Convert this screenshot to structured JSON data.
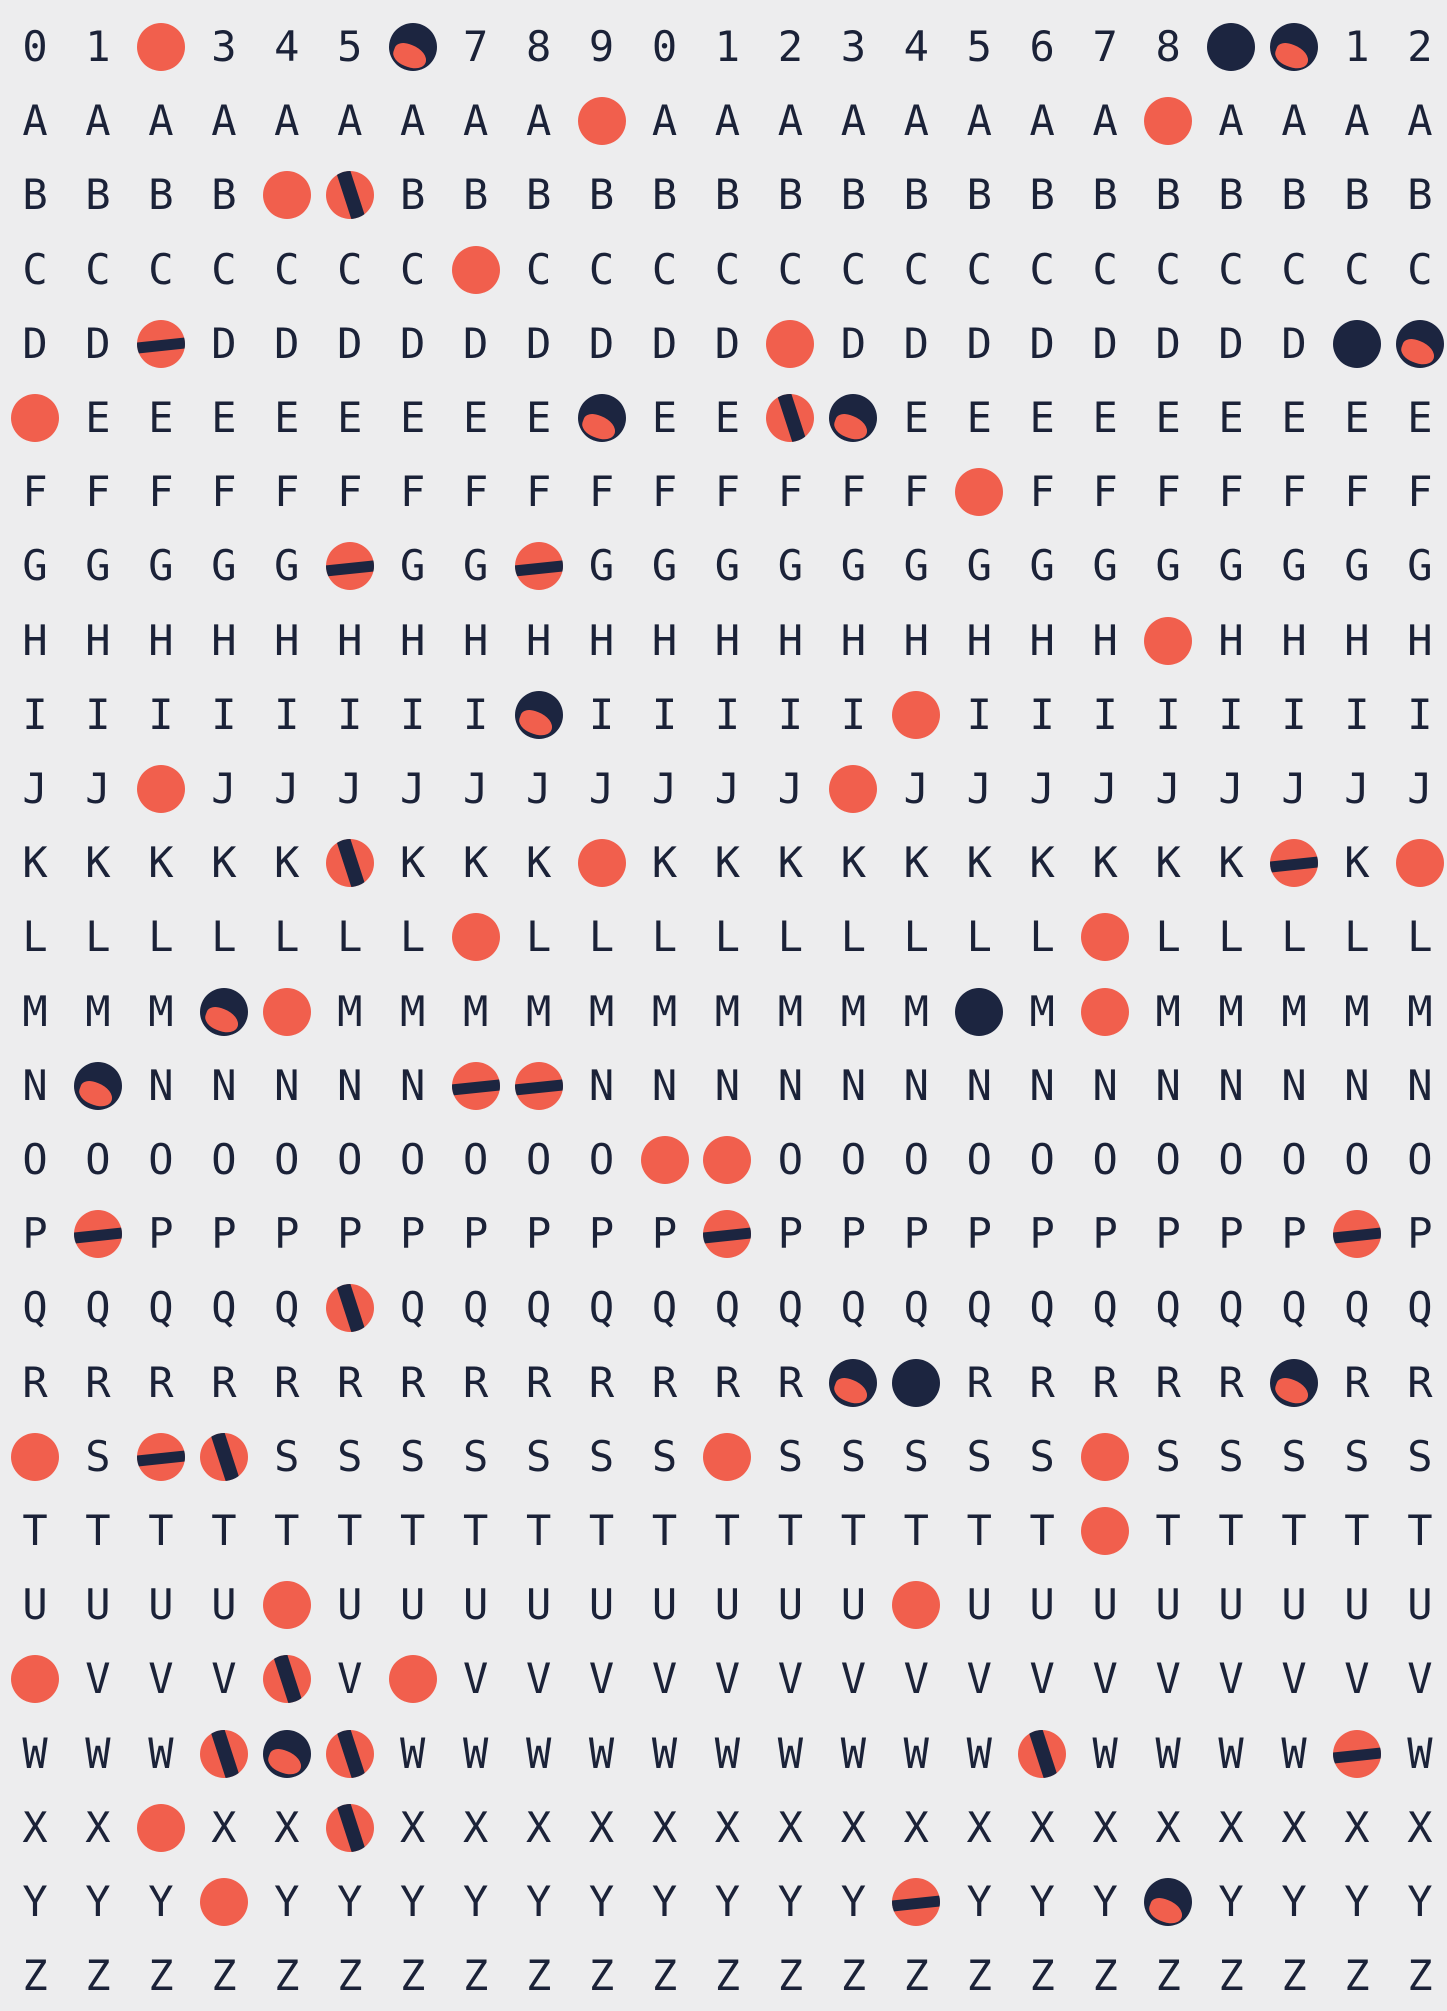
{
  "colors": {
    "background": "#ededee",
    "text": "#1b2238",
    "dot_red": "#f15f4d",
    "dot_navy": "#1c2540"
  },
  "columns": 23,
  "rows": [
    "0",
    "1",
    "2",
    "3",
    "4",
    "5",
    "6",
    "7",
    "8",
    "9",
    "0",
    "1",
    "2",
    "3",
    "4",
    "5",
    "6",
    "7",
    "8",
    "9",
    "0",
    "1",
    "2"
  ],
  "row_letters": [
    "A",
    "B",
    "C",
    "D",
    "E",
    "F",
    "G",
    "H",
    "I",
    "J",
    "K",
    "L",
    "M",
    "N",
    "O",
    "P",
    "Q",
    "R",
    "S",
    "T",
    "U",
    "V",
    "W",
    "X",
    "Y",
    "Z"
  ],
  "digits_row": [
    "0",
    "1",
    "2",
    "3",
    "4",
    "5",
    "6",
    "7",
    "8",
    "9",
    "0",
    "1",
    "2",
    "3",
    "4",
    "5",
    "6",
    "7",
    "8",
    "9",
    "0",
    "1",
    "2"
  ],
  "dots": {
    "0": [
      [
        2,
        "red"
      ],
      [
        6,
        "mix3"
      ],
      [
        19,
        "navy"
      ],
      [
        20,
        "mix3"
      ]
    ],
    "A": [
      [
        9,
        "red"
      ],
      [
        18,
        "red"
      ]
    ],
    "B": [
      [
        4,
        "red"
      ],
      [
        5,
        "mix"
      ]
    ],
    "C": [
      [
        7,
        "red"
      ]
    ],
    "D": [
      [
        2,
        "mix2"
      ],
      [
        12,
        "red"
      ],
      [
        21,
        "navy"
      ],
      [
        22,
        "mix3"
      ]
    ],
    "E": [
      [
        0,
        "red"
      ],
      [
        9,
        "mix3"
      ],
      [
        12,
        "mix"
      ],
      [
        13,
        "mix3"
      ]
    ],
    "F": [
      [
        15,
        "red"
      ]
    ],
    "G": [
      [
        5,
        "mix2"
      ],
      [
        8,
        "mix2"
      ]
    ],
    "H": [
      [
        18,
        "red"
      ]
    ],
    "I": [
      [
        8,
        "mix3"
      ],
      [
        14,
        "red"
      ]
    ],
    "J": [
      [
        2,
        "red"
      ],
      [
        13,
        "red"
      ]
    ],
    "K": [
      [
        5,
        "mix"
      ],
      [
        9,
        "red"
      ],
      [
        20,
        "mix2"
      ],
      [
        22,
        "red"
      ]
    ],
    "L": [
      [
        7,
        "red"
      ],
      [
        17,
        "red"
      ]
    ],
    "M": [
      [
        3,
        "mix3"
      ],
      [
        4,
        "red"
      ],
      [
        15,
        "navy"
      ],
      [
        17,
        "red"
      ]
    ],
    "N": [
      [
        1,
        "mix3"
      ],
      [
        7,
        "mix2"
      ],
      [
        8,
        "mix2"
      ]
    ],
    "O": [
      [
        10,
        "red"
      ],
      [
        11,
        "red"
      ]
    ],
    "P": [
      [
        1,
        "mix2"
      ],
      [
        11,
        "mix2"
      ],
      [
        21,
        "mix2"
      ]
    ],
    "Q": [
      [
        5,
        "mix"
      ]
    ],
    "R": [
      [
        13,
        "mix3"
      ],
      [
        14,
        "navy"
      ],
      [
        20,
        "mix3"
      ]
    ],
    "S": [
      [
        0,
        "red"
      ],
      [
        2,
        "mix2"
      ],
      [
        3,
        "mix"
      ],
      [
        11,
        "red"
      ],
      [
        17,
        "red"
      ]
    ],
    "T": [
      [
        17,
        "red"
      ]
    ],
    "U": [
      [
        4,
        "red"
      ],
      [
        14,
        "red"
      ]
    ],
    "V": [
      [
        0,
        "red"
      ],
      [
        4,
        "mix"
      ],
      [
        6,
        "red"
      ]
    ],
    "W": [
      [
        3,
        "mix"
      ],
      [
        4,
        "mix3"
      ],
      [
        5,
        "mix"
      ],
      [
        16,
        "mix"
      ],
      [
        21,
        "mix2"
      ]
    ],
    "X": [
      [
        2,
        "red"
      ],
      [
        5,
        "mix"
      ]
    ],
    "Y": [
      [
        3,
        "red"
      ],
      [
        14,
        "mix2"
      ],
      [
        18,
        "mix3"
      ]
    ],
    "Z": []
  }
}
